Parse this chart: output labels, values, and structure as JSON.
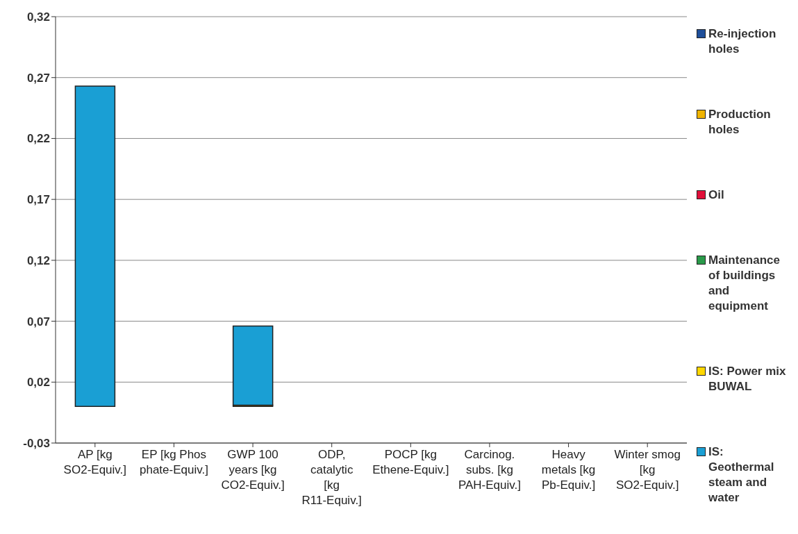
{
  "chart_data": {
    "type": "bar",
    "stacked": true,
    "categories": [
      "AP [kg SO2-Equiv.]",
      "EP [kg Phos phate-Equiv.]",
      "GWP 100 years [kg CO2-Equiv.]",
      "ODP, catalytic [kg R11-Equiv.]",
      "POCP [kg Ethene-Equiv.]",
      "Carcinog. subs. [kg PAH-Equiv.]",
      "Heavy metals [kg Pb-Equiv.]",
      "Winter smog [kg SO2-Equiv.]"
    ],
    "series": [
      {
        "name": "Maintenance of buildings and equipment",
        "color": "#2a9a4a",
        "values": [
          null,
          null,
          null,
          null,
          null,
          null,
          null,
          null
        ]
      },
      {
        "name": "Production holes",
        "color": "#f0b400",
        "values": [
          null,
          null,
          0.001,
          null,
          null,
          null,
          null,
          null
        ]
      },
      {
        "name": "Re-injection holes",
        "color": "#1f4f9a",
        "values": [
          null,
          null,
          null,
          null,
          null,
          null,
          null,
          null
        ]
      },
      {
        "name": "Oil",
        "color": "#e0103a",
        "values": [
          null,
          null,
          null,
          null,
          null,
          null,
          null,
          null
        ]
      },
      {
        "name": "IS: Geothermal steam and water",
        "color": "#1a9fd4",
        "values": [
          0.263,
          null,
          0.065,
          null,
          null,
          null,
          null,
          null
        ]
      },
      {
        "name": "IS: Power mix BUWAL",
        "color": "#ffd700",
        "values": [
          null,
          null,
          null,
          null,
          null,
          null,
          null,
          null
        ]
      }
    ],
    "ylim": [
      -0.03,
      0.32
    ],
    "yticks": [
      {
        "value": -0.03,
        "label": "-0,03"
      },
      {
        "value": 0.02,
        "label": "0,02"
      },
      {
        "value": 0.07,
        "label": "0,07"
      },
      {
        "value": 0.12,
        "label": "0,12"
      },
      {
        "value": 0.17,
        "label": "0,17"
      },
      {
        "value": 0.22,
        "label": "0,22"
      },
      {
        "value": 0.27,
        "label": "0,27"
      },
      {
        "value": 0.32,
        "label": "0,32"
      }
    ],
    "grid": "y",
    "legend": "right"
  }
}
